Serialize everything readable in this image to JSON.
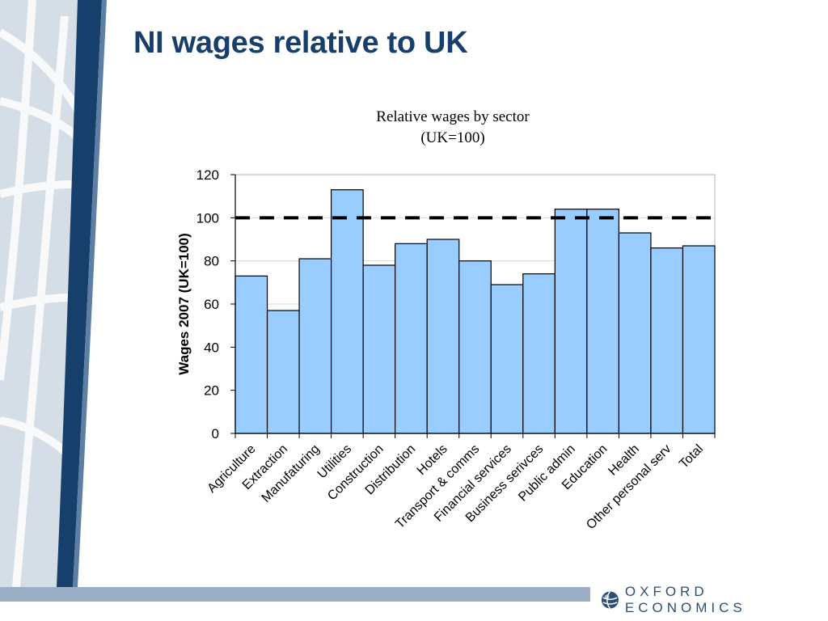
{
  "slide": {
    "title": "NI wages relative to UK",
    "brand": "OXFORD ECONOMICS"
  },
  "colors": {
    "title": "#173f6b",
    "bar_fill": "#99ccff",
    "bar_stroke": "#000000",
    "reference_line": "#000000",
    "left_band_dark": "#173f6b",
    "footer_bar": "#9aafc6",
    "brand_text": "#2f4f72"
  },
  "chart_data": {
    "type": "bar",
    "title": "Relative wages by sector",
    "subtitle": "(UK=100)",
    "ylabel": "Wages 2007 (UK=100)",
    "xlabel": "",
    "ylim": [
      0,
      120
    ],
    "yticks": [
      0,
      20,
      40,
      60,
      80,
      100,
      120
    ],
    "grid": true,
    "legend": "none",
    "reference_line": {
      "value": 100,
      "style": "dashed"
    },
    "categories": [
      "Agriculture",
      "Extraction",
      "Manufaturing",
      "Utilities",
      "Construction",
      "Distribution",
      "Hotels",
      "Transport & comms",
      "Financial services",
      "Business serivces",
      "Public admin",
      "Education",
      "Health",
      "Other personal serv",
      "Total"
    ],
    "values": [
      73,
      57,
      81,
      113,
      78,
      88,
      90,
      80,
      69,
      74,
      104,
      104,
      93,
      86,
      87
    ]
  }
}
